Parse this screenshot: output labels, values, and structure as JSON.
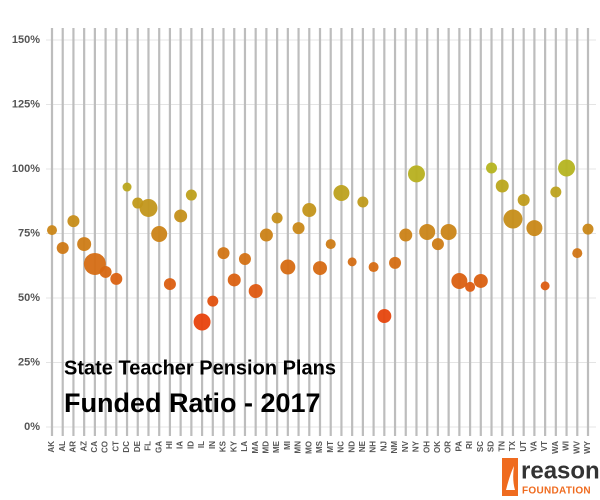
{
  "chart_data": {
    "type": "bubble",
    "title": "State Teacher Pension Plans",
    "subtitle": "Funded Ratio - 2017",
    "source": {
      "name": "reason",
      "tagline": "FOUNDATION"
    },
    "categories": [
      "AK",
      "AL",
      "AR",
      "AZ",
      "CA",
      "CO",
      "CT",
      "DC",
      "DE",
      "FL",
      "GA",
      "HI",
      "IA",
      "ID",
      "IL",
      "IN",
      "KS",
      "KY",
      "LA",
      "MA",
      "MD",
      "ME",
      "MI",
      "MN",
      "MO",
      "MS",
      "MT",
      "NC",
      "ND",
      "NE",
      "NH",
      "NJ",
      "NM",
      "NV",
      "NY",
      "OH",
      "OK",
      "OR",
      "PA",
      "RI",
      "SC",
      "SD",
      "TN",
      "TX",
      "UT",
      "VA",
      "VT",
      "WA",
      "WI",
      "WV",
      "WY"
    ],
    "values": [
      76.3,
      69.4,
      79.8,
      70.9,
      63.2,
      60.1,
      57.4,
      93.0,
      86.8,
      84.9,
      74.8,
      55.4,
      81.8,
      89.9,
      40.7,
      48.8,
      67.4,
      57.0,
      65.1,
      52.7,
      74.4,
      81.0,
      62.0,
      77.1,
      84.1,
      61.6,
      70.9,
      90.7,
      64.0,
      87.2,
      62.0,
      43.0,
      63.6,
      74.4,
      98.1,
      75.6,
      70.9,
      75.6,
      56.6,
      54.3,
      56.6,
      100.4,
      93.4,
      80.6,
      88.0,
      77.1,
      54.7,
      91.1,
      100.4,
      67.4,
      76.7
    ],
    "sizes": [
      5,
      6,
      6,
      7,
      11,
      6,
      6,
      4.5,
      5.5,
      9,
      8,
      6,
      6.5,
      5.5,
      8.5,
      5.5,
      6,
      6.5,
      6,
      7,
      6.5,
      5.5,
      7.5,
      6,
      7,
      7,
      5,
      8,
      4.5,
      5.5,
      5,
      7,
      6,
      6.5,
      8.5,
      8,
      6,
      8,
      8,
      5,
      7,
      5.5,
      6.5,
      9.5,
      6,
      8,
      4.5,
      5.5,
      8.5,
      5,
      5.5
    ],
    "color_scale": {
      "low": "#e8420c",
      "high": "#b5b420"
    },
    "ylim": [
      0,
      150
    ],
    "yticks": [
      {
        "value": 0,
        "label": "0%"
      },
      {
        "value": 25,
        "label": "25%"
      },
      {
        "value": 50,
        "label": "50%"
      },
      {
        "value": 75,
        "label": "75%"
      },
      {
        "value": 100,
        "label": "100%"
      },
      {
        "value": 125,
        "label": "125%"
      },
      {
        "value": 150,
        "label": "150%"
      }
    ],
    "grid": true
  }
}
